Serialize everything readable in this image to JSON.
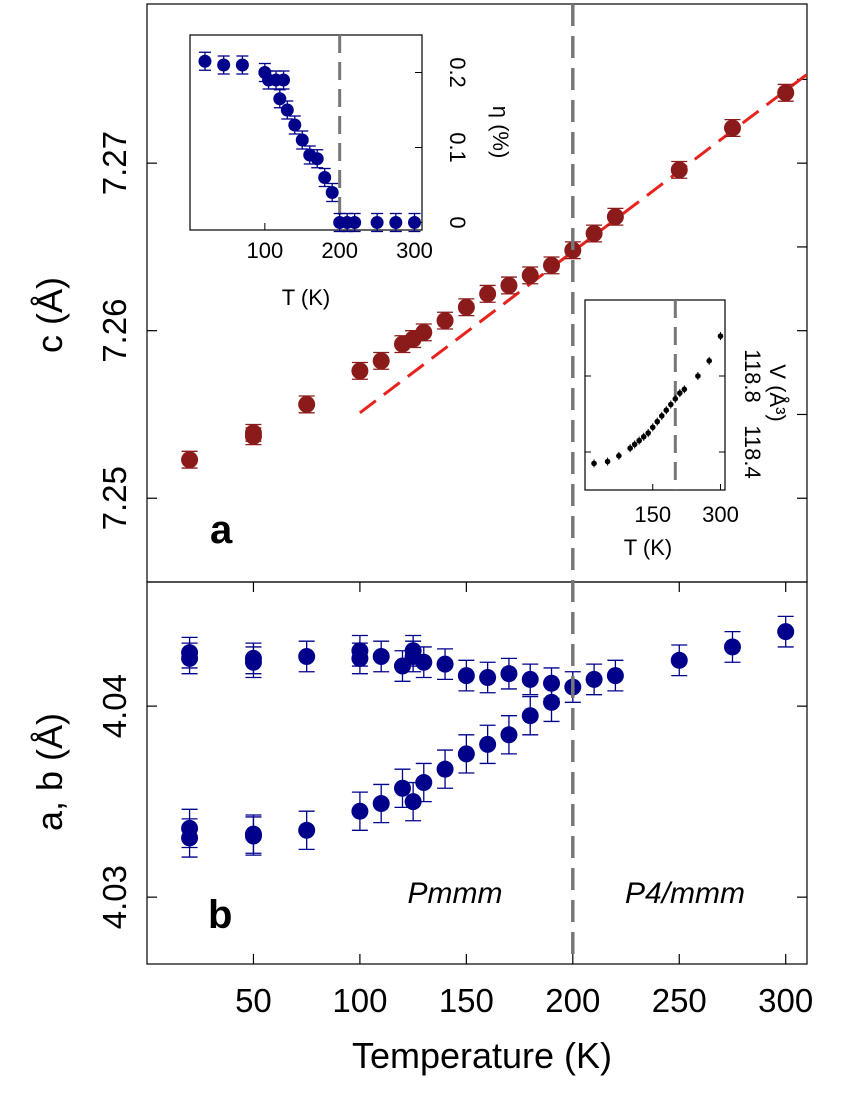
{
  "chart_data": [
    {
      "type": "scatter",
      "panel_label": "a",
      "xlabel": "Temperature (K)",
      "ylabel": "c (Å)",
      "xlim": [
        0,
        310
      ],
      "ylim": [
        7.245,
        7.2795
      ],
      "xticks": [
        "50",
        "100",
        "150",
        "200",
        "250",
        "300"
      ],
      "yticks": [
        "7.25",
        "7.26",
        "7.27"
      ],
      "marker_color": "#8b1a1a",
      "fit_color": "#e8231e",
      "series": [
        {
          "x": [
            20,
            50,
            50,
            75,
            100,
            110,
            120,
            125,
            130,
            140,
            150,
            160,
            170,
            180,
            190,
            200,
            210,
            220,
            250,
            275,
            300
          ],
          "y": [
            7.2523,
            7.2539,
            7.2537,
            7.2556,
            7.2576,
            7.2582,
            7.2592,
            7.2595,
            7.2599,
            7.2606,
            7.2614,
            7.2622,
            7.2627,
            7.2633,
            7.2639,
            7.2648,
            7.2658,
            7.2668,
            7.2696,
            7.2721,
            7.2742
          ],
          "err": [
            0.0005,
            0.0005,
            0.0005,
            0.0005,
            0.0005,
            0.0005,
            0.0005,
            0.0005,
            0.0005,
            0.0005,
            0.0005,
            0.0005,
            0.0005,
            0.0005,
            0.0005,
            0.0005,
            0.0005,
            0.0005,
            0.0005,
            0.0005,
            0.0005
          ]
        }
      ],
      "fit_line": {
        "x": [
          100,
          310
        ],
        "y": [
          7.2551,
          7.2753
        ]
      },
      "transition_T": 200
    },
    {
      "type": "scatter",
      "panel_label": "b",
      "ylabel": "a, b (Å)",
      "xlim": [
        0,
        310
      ],
      "ylim": [
        4.0265,
        4.0465
      ],
      "yticks": [
        "4.03",
        "4.04"
      ],
      "marker_color": "#00008b",
      "annotations": [
        "Pmmm",
        "P4/mmm"
      ],
      "series": [
        {
          "x": [
            20,
            20,
            50,
            50,
            75,
            100,
            100,
            110,
            120,
            125,
            125,
            130,
            140,
            150,
            160,
            170,
            180,
            190,
            200,
            210,
            220,
            250,
            275,
            300
          ],
          "y": [
            4.0428,
            4.0425,
            4.0425,
            4.0423,
            4.0426,
            4.0429,
            4.0425,
            4.0426,
            4.0421,
            4.0429,
            4.0426,
            4.0423,
            4.0422,
            4.0416,
            4.0415,
            4.0417,
            4.0414,
            4.0412,
            4.041,
            4.0414,
            4.0416,
            4.0424,
            4.0431,
            4.0439
          ],
          "err": [
            0.0008,
            0.0008,
            0.0008,
            0.0008,
            0.0008,
            0.0008,
            0.0008,
            0.0008,
            0.0008,
            0.0008,
            0.0008,
            0.0008,
            0.0008,
            0.0008,
            0.0008,
            0.0008,
            0.0008,
            0.0008,
            0.0008,
            0.0008,
            0.0008,
            0.0008,
            0.0008,
            0.0008
          ]
        },
        {
          "x": [
            20,
            20,
            50,
            50,
            75,
            100,
            110,
            120,
            125,
            130,
            140,
            150,
            160,
            170,
            180,
            190
          ],
          "y": [
            4.0336,
            4.0331,
            4.0333,
            4.0332,
            4.0335,
            4.0345,
            4.0349,
            4.0357,
            4.035,
            4.036,
            4.0367,
            4.0375,
            4.038,
            4.0385,
            4.0395,
            4.0402
          ],
          "err": [
            0.001,
            0.001,
            0.001,
            0.001,
            0.001,
            0.001,
            0.001,
            0.001,
            0.001,
            0.001,
            0.001,
            0.001,
            0.001,
            0.001,
            0.001,
            0.001
          ]
        }
      ],
      "transition_T": 200
    },
    {
      "type": "scatter",
      "inset": "top-left",
      "xlabel": "T (K)",
      "ylabel": "η (%)",
      "xlim": [
        0,
        310
      ],
      "ylim": [
        -0.01,
        0.25
      ],
      "xticks": [
        "100",
        "200",
        "300"
      ],
      "yticks": [
        "0",
        "0.1",
        "0.2"
      ],
      "marker_color": "#00008b",
      "series": [
        {
          "x": [
            20,
            45,
            70,
            100,
            105,
            115,
            125,
            120,
            130,
            140,
            150,
            160,
            170,
            180,
            190,
            200,
            210,
            220,
            250,
            275,
            300
          ],
          "y": [
            0.215,
            0.21,
            0.21,
            0.2,
            0.19,
            0.19,
            0.19,
            0.165,
            0.15,
            0.13,
            0.11,
            0.09,
            0.085,
            0.06,
            0.04,
            0.0,
            0.0,
            0.0,
            0.0,
            0.0,
            0.0
          ],
          "err": [
            0.012,
            0.012,
            0.012,
            0.012,
            0.012,
            0.012,
            0.012,
            0.012,
            0.012,
            0.012,
            0.012,
            0.012,
            0.012,
            0.012,
            0.012,
            0.012,
            0.012,
            0.012,
            0.012,
            0.012,
            0.012
          ]
        }
      ],
      "transition_T": 200
    },
    {
      "type": "scatter",
      "inset": "bottom-right",
      "xlabel": "T (K)",
      "ylabel": "V (Å³)",
      "xlim": [
        0,
        310
      ],
      "ylim": [
        118.2,
        119.2
      ],
      "xticks": [
        "150",
        "300"
      ],
      "yticks": [
        "118.4",
        "118.8"
      ],
      "marker_color": "#000000",
      "series": [
        {
          "x": [
            20,
            50,
            75,
            100,
            110,
            120,
            130,
            140,
            150,
            160,
            170,
            180,
            190,
            200,
            210,
            220,
            250,
            275,
            300
          ],
          "y": [
            118.34,
            118.35,
            118.38,
            118.42,
            118.44,
            118.46,
            118.48,
            118.5,
            118.53,
            118.56,
            118.59,
            118.62,
            118.65,
            118.68,
            118.71,
            118.73,
            118.8,
            118.88,
            119.01
          ]
        }
      ],
      "transition_T": 200
    }
  ]
}
